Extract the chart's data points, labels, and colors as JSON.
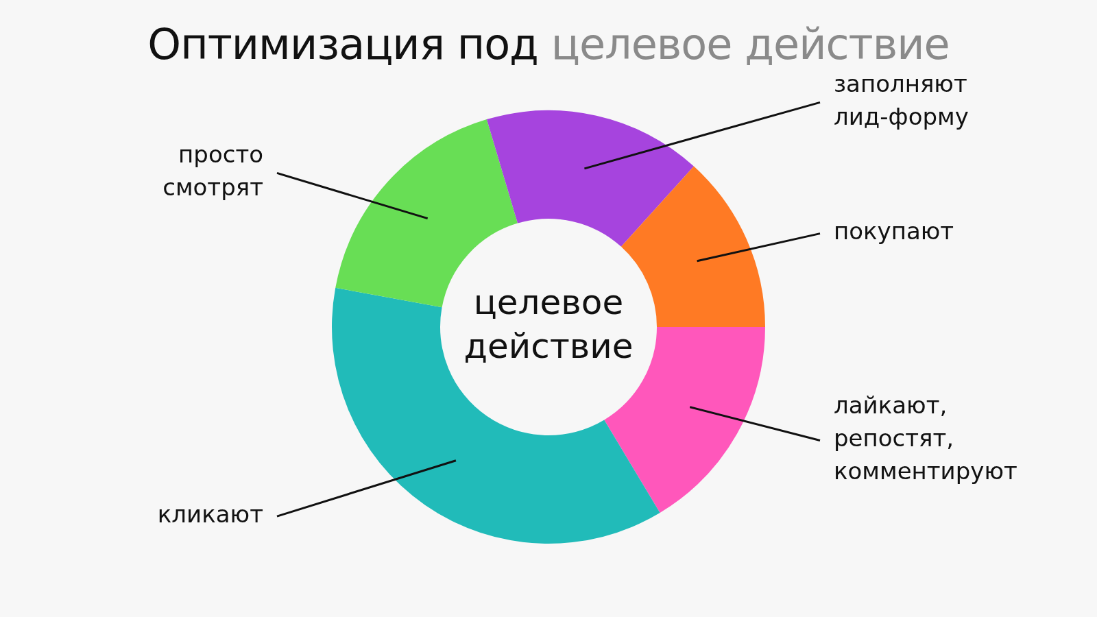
{
  "chart_data": {
    "type": "donut",
    "title": "Оптимизация под целевое действие",
    "categories": [
      "лайкают, репостят, комментируют",
      "кликают",
      "просто смотрят",
      "заполняют лид-форму",
      "покупают"
    ],
    "values": [
      16.4,
      36.5,
      17.5,
      16.3,
      13.3
    ],
    "colors": [
      "#ff57bb",
      "#21bbb9",
      "#68de55",
      "#a644de",
      "#ff7a24"
    ],
    "annotations": [
      "целевое действие"
    ],
    "legend": false
  }
}
